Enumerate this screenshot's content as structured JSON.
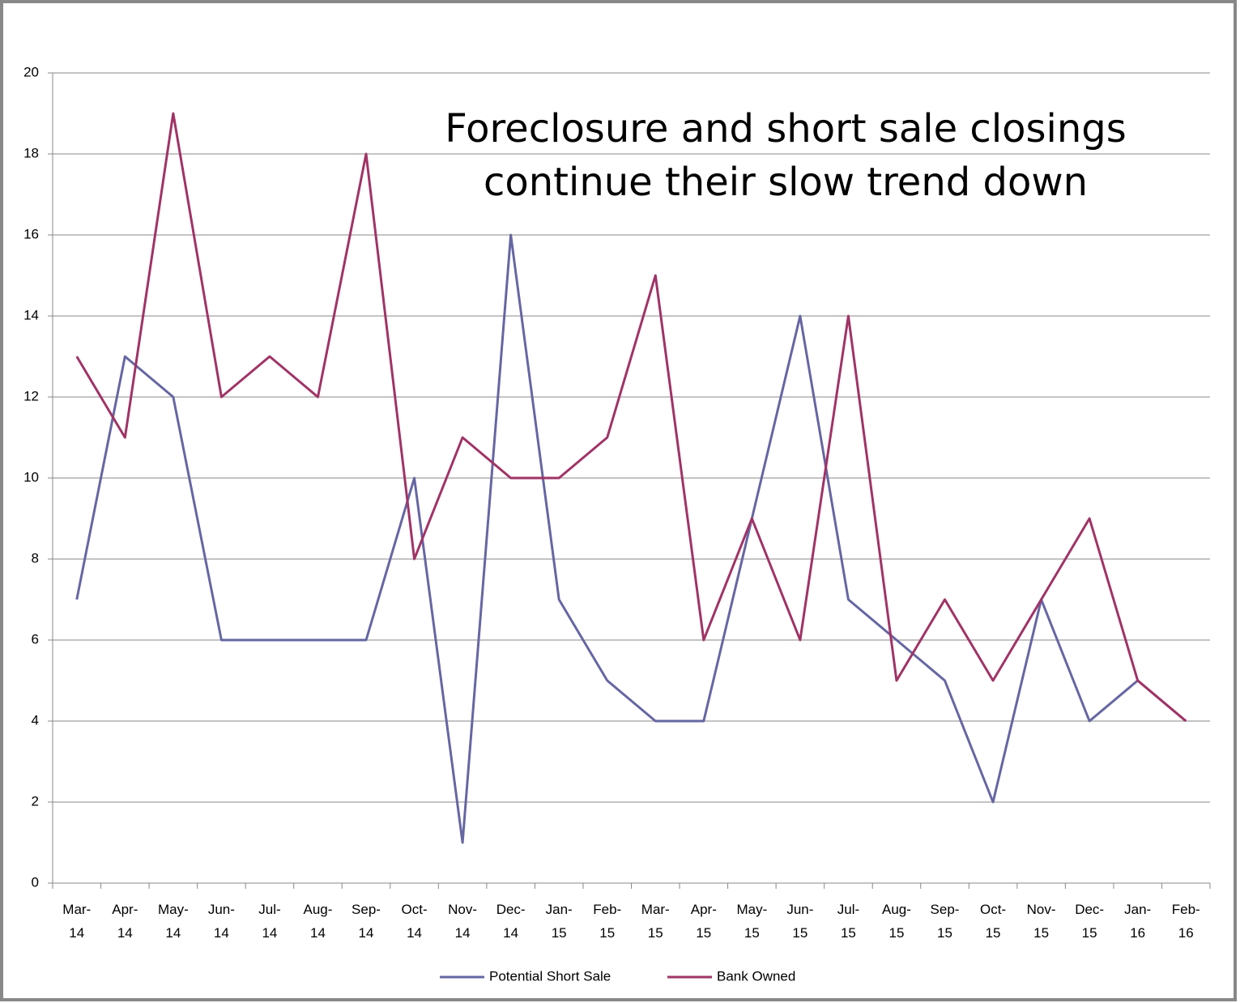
{
  "chart_data": {
    "type": "line",
    "title": [
      "Foreclosure and short sale closings",
      "continue their slow trend down"
    ],
    "categories": [
      "Mar-14",
      "Apr-14",
      "May-14",
      "Jun-14",
      "Jul-14",
      "Aug-14",
      "Sep-14",
      "Oct-14",
      "Nov-14",
      "Dec-14",
      "Jan-15",
      "Feb-15",
      "Mar-15",
      "Apr-15",
      "May-15",
      "Jun-15",
      "Jul-15",
      "Aug-15",
      "Sep-15",
      "Oct-15",
      "Nov-15",
      "Dec-15",
      "Jan-16",
      "Feb-16"
    ],
    "series": [
      {
        "name": "Potential Short Sale",
        "color": "#6666a3",
        "values": [
          7,
          13,
          12,
          6,
          6,
          6,
          6,
          10,
          1,
          16,
          7,
          5,
          4,
          4,
          9,
          14,
          7,
          6,
          5,
          2,
          7,
          4,
          5,
          4
        ]
      },
      {
        "name": "Bank Owned",
        "color": "#a03366",
        "values": [
          13,
          11,
          19,
          12,
          13,
          12,
          18,
          8,
          11,
          10,
          10,
          11,
          15,
          6,
          9,
          6,
          14,
          5,
          7,
          5,
          7,
          9,
          5,
          4
        ]
      }
    ],
    "ylim": [
      0,
      20
    ],
    "yticks": [
      0,
      2,
      4,
      6,
      8,
      10,
      12,
      14,
      16,
      18,
      20
    ],
    "grid": true,
    "legend": "bottom"
  }
}
